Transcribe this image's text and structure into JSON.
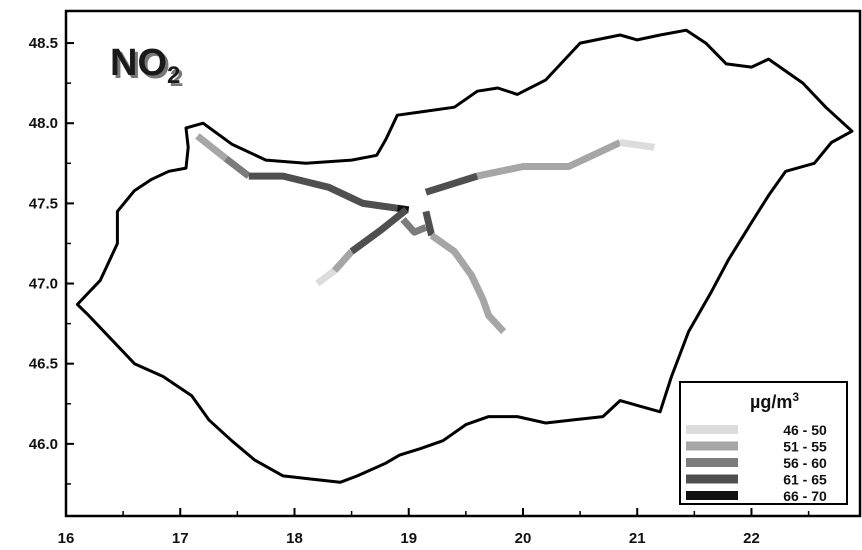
{
  "title": {
    "main": "NO",
    "subscript": "2"
  },
  "axes": {
    "x_ticks": [
      "16",
      "17",
      "18",
      "19",
      "20",
      "21",
      "22"
    ],
    "y_ticks": [
      "48.5",
      "48.0",
      "47.5",
      "47.0",
      "46.5",
      "46.0"
    ],
    "x_range": [
      16,
      22.95
    ],
    "y_range": [
      45.55,
      48.7
    ]
  },
  "legend": {
    "unit": "µg/m",
    "unit_superscript": "3",
    "placement": "bottom-right",
    "classes": [
      {
        "label": "46 - 50",
        "color": "#dcdcdc"
      },
      {
        "label": "51 - 55",
        "color": "#a6a6a6"
      },
      {
        "label": "56 - 60",
        "color": "#7c7c7c"
      },
      {
        "label": "61 - 65",
        "color": "#4f4f4f"
      },
      {
        "label": "66 - 70",
        "color": "#111111"
      }
    ]
  },
  "chart_data": {
    "type": "line",
    "title": "NO2",
    "xlabel": "",
    "ylabel": "",
    "xlim": [
      16,
      22.95
    ],
    "ylim": [
      45.55,
      48.7
    ],
    "country_outline": [
      [
        16.1,
        46.87
      ],
      [
        16.3,
        47.02
      ],
      [
        16.45,
        47.25
      ],
      [
        16.45,
        47.45
      ],
      [
        16.6,
        47.58
      ],
      [
        16.75,
        47.65
      ],
      [
        16.9,
        47.7
      ],
      [
        17.05,
        47.72
      ],
      [
        17.07,
        47.85
      ],
      [
        17.05,
        47.97
      ],
      [
        17.2,
        48.0
      ],
      [
        17.45,
        47.87
      ],
      [
        17.75,
        47.77
      ],
      [
        18.1,
        47.75
      ],
      [
        18.5,
        47.77
      ],
      [
        18.72,
        47.8
      ],
      [
        18.8,
        47.9
      ],
      [
        18.9,
        48.05
      ],
      [
        19.1,
        48.07
      ],
      [
        19.4,
        48.1
      ],
      [
        19.6,
        48.2
      ],
      [
        19.78,
        48.22
      ],
      [
        19.95,
        48.18
      ],
      [
        20.2,
        48.27
      ],
      [
        20.5,
        48.5
      ],
      [
        20.85,
        48.55
      ],
      [
        21.0,
        48.52
      ],
      [
        21.2,
        48.55
      ],
      [
        21.43,
        48.58
      ],
      [
        21.6,
        48.5
      ],
      [
        21.78,
        48.37
      ],
      [
        22.0,
        48.35
      ],
      [
        22.15,
        48.4
      ],
      [
        22.45,
        48.25
      ],
      [
        22.65,
        48.1
      ],
      [
        22.88,
        47.95
      ],
      [
        22.7,
        47.88
      ],
      [
        22.55,
        47.75
      ],
      [
        22.3,
        47.7
      ],
      [
        22.15,
        47.55
      ],
      [
        22.0,
        47.38
      ],
      [
        21.8,
        47.15
      ],
      [
        21.65,
        46.95
      ],
      [
        21.45,
        46.7
      ],
      [
        21.3,
        46.42
      ],
      [
        21.2,
        46.2
      ],
      [
        20.85,
        46.27
      ],
      [
        20.7,
        46.17
      ],
      [
        20.45,
        46.15
      ],
      [
        20.2,
        46.13
      ],
      [
        19.95,
        46.17
      ],
      [
        19.7,
        46.17
      ],
      [
        19.5,
        46.12
      ],
      [
        19.3,
        46.02
      ],
      [
        19.1,
        45.97
      ],
      [
        18.92,
        45.93
      ],
      [
        18.8,
        45.88
      ],
      [
        18.55,
        45.8
      ],
      [
        18.4,
        45.76
      ],
      [
        18.15,
        45.78
      ],
      [
        17.9,
        45.8
      ],
      [
        17.65,
        45.9
      ],
      [
        17.45,
        46.02
      ],
      [
        17.25,
        46.15
      ],
      [
        17.1,
        46.3
      ],
      [
        16.85,
        46.42
      ],
      [
        16.6,
        46.5
      ],
      [
        16.4,
        46.65
      ],
      [
        16.2,
        46.8
      ],
      [
        16.1,
        46.87
      ]
    ],
    "routes": [
      {
        "points": [
          [
            17.15,
            47.92
          ],
          [
            17.4,
            47.78
          ]
        ],
        "class": "51 - 55"
      },
      {
        "points": [
          [
            17.4,
            47.78
          ],
          [
            17.6,
            47.67
          ]
        ],
        "class": "56 - 60"
      },
      {
        "points": [
          [
            17.6,
            47.67
          ],
          [
            17.9,
            47.67
          ],
          [
            18.3,
            47.6
          ],
          [
            18.6,
            47.5
          ],
          [
            18.9,
            47.47
          ]
        ],
        "class": "61 - 65"
      },
      {
        "points": [
          [
            18.9,
            47.47
          ],
          [
            19.0,
            47.46
          ]
        ],
        "class": "66 - 70"
      },
      {
        "points": [
          [
            18.2,
            47.0
          ],
          [
            18.35,
            47.08
          ]
        ],
        "class": "46 - 50"
      },
      {
        "points": [
          [
            18.35,
            47.08
          ],
          [
            18.5,
            47.2
          ]
        ],
        "class": "51 - 55"
      },
      {
        "points": [
          [
            18.5,
            47.2
          ],
          [
            18.75,
            47.33
          ],
          [
            18.98,
            47.46
          ]
        ],
        "class": "61 - 65"
      },
      {
        "points": [
          [
            18.95,
            47.4
          ],
          [
            19.05,
            47.32
          ],
          [
            19.15,
            47.35
          ]
        ],
        "class": "56 - 60"
      },
      {
        "points": [
          [
            19.15,
            47.45
          ],
          [
            19.2,
            47.3
          ]
        ],
        "class": "61 - 65"
      },
      {
        "points": [
          [
            19.2,
            47.3
          ],
          [
            19.4,
            47.2
          ],
          [
            19.55,
            47.05
          ],
          [
            19.65,
            46.9
          ],
          [
            19.7,
            46.8
          ],
          [
            19.83,
            46.7
          ]
        ],
        "class": "51 - 55"
      },
      {
        "points": [
          [
            19.15,
            47.57
          ],
          [
            19.6,
            47.67
          ]
        ],
        "class": "61 - 65"
      },
      {
        "points": [
          [
            19.6,
            47.67
          ],
          [
            20.0,
            47.73
          ],
          [
            20.4,
            47.73
          ],
          [
            20.85,
            47.88
          ]
        ],
        "class": "51 - 55"
      },
      {
        "points": [
          [
            20.85,
            47.88
          ],
          [
            21.15,
            47.85
          ]
        ],
        "class": "46 - 50"
      }
    ]
  }
}
